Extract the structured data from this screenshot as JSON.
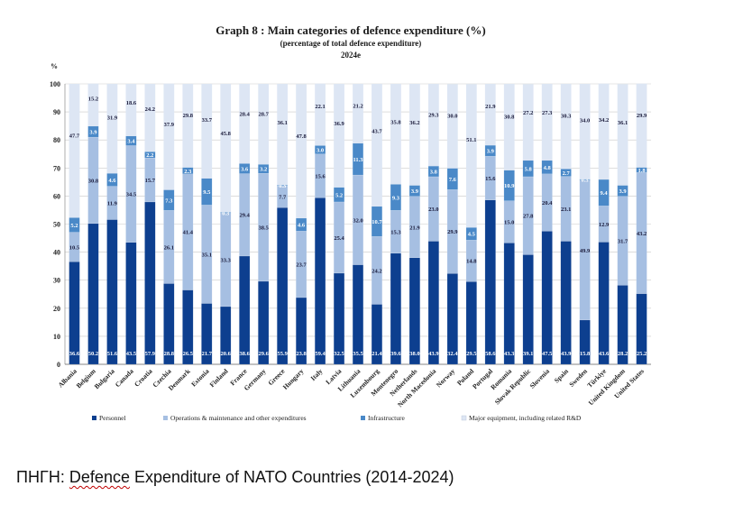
{
  "chart_data": {
    "type": "bar",
    "stacked": true,
    "title": "Graph 8 : Main categories of defence expenditure (%)",
    "subtitle": "(percentage of total defence expenditure)",
    "subtitle2": "2024e",
    "ylabel": "%",
    "ylim": [
      0,
      100
    ],
    "yticks": [
      0,
      10,
      20,
      30,
      40,
      50,
      60,
      70,
      80,
      90,
      100
    ],
    "grid": true,
    "legend_placement": "bottom",
    "categories": [
      "Albania",
      "Belgium",
      "Bulgaria",
      "Canada",
      "Croatia",
      "Czechia",
      "Denmark",
      "Estonia",
      "Finland",
      "France",
      "Germany",
      "Greece",
      "Hungary",
      "Italy",
      "Latvia",
      "Lithuania",
      "Luxembourg",
      "Montenegro",
      "Netherlands",
      "North Macedonia",
      "Norway",
      "Poland",
      "Portugal",
      "Romania",
      "Slovak Republic",
      "Slovenia",
      "Spain",
      "Sweden",
      "Türkiye",
      "United Kingdom",
      "United States"
    ],
    "series": [
      {
        "name": "Personnel",
        "color": "#0d3f8f",
        "values": [
          36.6,
          50.2,
          51.6,
          43.5,
          57.9,
          28.8,
          26.5,
          21.7,
          20.6,
          38.6,
          29.6,
          55.9,
          23.8,
          59.4,
          32.5,
          35.5,
          21.4,
          39.6,
          38.0,
          43.9,
          32.4,
          29.5,
          58.6,
          43.3,
          39.1,
          47.5,
          43.9,
          15.8,
          43.6,
          28.2,
          25.2
        ]
      },
      {
        "name": "Operations & maintenance and other expenditures",
        "color": "#a6bfe2",
        "values": [
          10.5,
          30.8,
          11.9,
          34.5,
          15.7,
          26.1,
          41.4,
          35.1,
          33.3,
          29.4,
          38.5,
          7.7,
          23.7,
          15.6,
          25.4,
          32.0,
          24.2,
          15.3,
          21.9,
          23.0,
          29.9,
          14.8,
          15.6,
          15.0,
          27.8,
          20.4,
          23.1,
          49.9,
          12.9,
          31.7,
          43.2
        ]
      },
      {
        "name": "Infrastructure",
        "color": "#4a89c8",
        "values": [
          5.2,
          3.9,
          4.6,
          3.4,
          2.2,
          7.3,
          2.3,
          9.5,
          0.3,
          3.6,
          3.2,
          0.3,
          4.6,
          3.0,
          5.2,
          11.3,
          10.7,
          9.3,
          3.9,
          3.8,
          7.6,
          4.5,
          3.9,
          10.9,
          5.8,
          4.8,
          2.7,
          0.3,
          9.4,
          3.9,
          1.8
        ]
      },
      {
        "name": "Major equipment, including related R&D",
        "color": "#dde6f4",
        "values": [
          47.7,
          15.2,
          31.9,
          18.6,
          24.2,
          37.9,
          29.8,
          33.7,
          45.8,
          28.4,
          28.7,
          36.1,
          47.8,
          22.1,
          36.9,
          21.2,
          43.7,
          35.8,
          36.2,
          29.3,
          30.0,
          51.1,
          21.9,
          30.8,
          27.2,
          27.3,
          30.3,
          34.0,
          34.2,
          36.1,
          29.9
        ]
      }
    ]
  },
  "source": {
    "prefix": "ΠΗΓΗ: ",
    "squiggled": "Defence",
    "rest": " Expenditure of NATO Countries (2014-2024)"
  }
}
